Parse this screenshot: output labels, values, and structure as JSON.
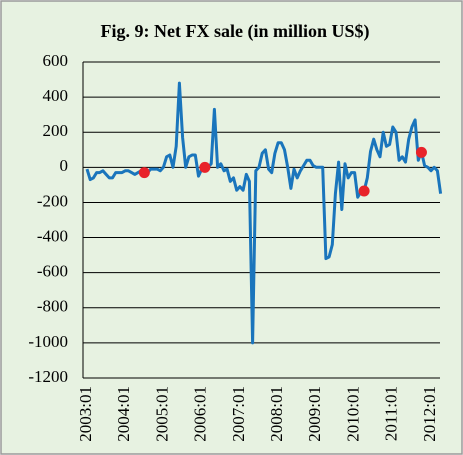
{
  "chart_data": {
    "type": "line",
    "title": "Fig. 9: Net FX sale (in million US$)",
    "categories": [
      "2003:01",
      null,
      null,
      null,
      null,
      null,
      null,
      null,
      null,
      null,
      null,
      null,
      "2004:01",
      null,
      null,
      null,
      null,
      null,
      null,
      null,
      null,
      null,
      null,
      null,
      "2005:01",
      null,
      null,
      null,
      null,
      null,
      null,
      null,
      null,
      null,
      null,
      null,
      "2006:01",
      null,
      null,
      null,
      null,
      null,
      null,
      null,
      null,
      null,
      null,
      null,
      "2007:01",
      null,
      null,
      null,
      null,
      null,
      null,
      null,
      null,
      null,
      null,
      null,
      "2008:01",
      null,
      null,
      null,
      null,
      null,
      null,
      null,
      null,
      null,
      null,
      null,
      "2009:01",
      null,
      null,
      null,
      null,
      null,
      null,
      null,
      null,
      null,
      null,
      null,
      "2010:01",
      null,
      null,
      null,
      null,
      null,
      null,
      null,
      null,
      null,
      null,
      null,
      "2011:01",
      null,
      null,
      null,
      null,
      null,
      null,
      null,
      null,
      null,
      null,
      null,
      "2012:01",
      null,
      null,
      null
    ],
    "series": [
      {
        "mode": "line",
        "color": "#1a75bc",
        "values": [
          -10,
          -70,
          -60,
          -30,
          -30,
          -20,
          -40,
          -60,
          -60,
          -30,
          -30,
          -30,
          -20,
          -20,
          -30,
          -40,
          -30,
          -20,
          -30,
          -30,
          -10,
          -10,
          -10,
          -20,
          0,
          60,
          70,
          0,
          120,
          480,
          170,
          0,
          60,
          70,
          70,
          -50,
          -10,
          0,
          0,
          20,
          330,
          0,
          20,
          -20,
          -10,
          -80,
          -60,
          -130,
          -110,
          -130,
          -40,
          -80,
          -1000,
          -20,
          0,
          80,
          100,
          -10,
          -30,
          80,
          140,
          140,
          100,
          0,
          -120,
          -10,
          -60,
          -20,
          10,
          40,
          40,
          10,
          0,
          0,
          0,
          -520,
          -510,
          -440,
          -150,
          30,
          -240,
          20,
          -60,
          -30,
          -30,
          -170,
          -140,
          -135,
          -60,
          90,
          160,
          100,
          60,
          200,
          120,
          130,
          230,
          200,
          40,
          60,
          30,
          160,
          230,
          270,
          40,
          90,
          10,
          0,
          -20,
          0,
          -20,
          -150
        ]
      },
      {
        "mode": "markers",
        "color": "#e8232a",
        "values": [
          null,
          null,
          null,
          null,
          null,
          null,
          null,
          null,
          null,
          null,
          null,
          null,
          null,
          null,
          null,
          null,
          null,
          null,
          -30,
          null,
          null,
          null,
          null,
          null,
          null,
          null,
          null,
          null,
          null,
          null,
          null,
          null,
          null,
          null,
          null,
          null,
          null,
          0,
          null,
          null,
          null,
          null,
          null,
          null,
          null,
          null,
          null,
          null,
          null,
          null,
          null,
          null,
          null,
          null,
          null,
          null,
          null,
          null,
          null,
          null,
          null,
          null,
          null,
          null,
          null,
          null,
          null,
          null,
          null,
          null,
          null,
          null,
          null,
          null,
          null,
          null,
          null,
          null,
          null,
          null,
          null,
          null,
          null,
          null,
          null,
          null,
          null,
          -135,
          null,
          null,
          null,
          null,
          null,
          null,
          null,
          null,
          null,
          null,
          null,
          null,
          null,
          null,
          null,
          null,
          null,
          85,
          null,
          null,
          null,
          null,
          null,
          null
        ]
      }
    ],
    "ylim": [
      -1200,
      600
    ],
    "yticks": [
      -1200,
      -1000,
      -800,
      -600,
      -400,
      -200,
      0,
      200,
      400,
      600
    ],
    "grid": true
  }
}
